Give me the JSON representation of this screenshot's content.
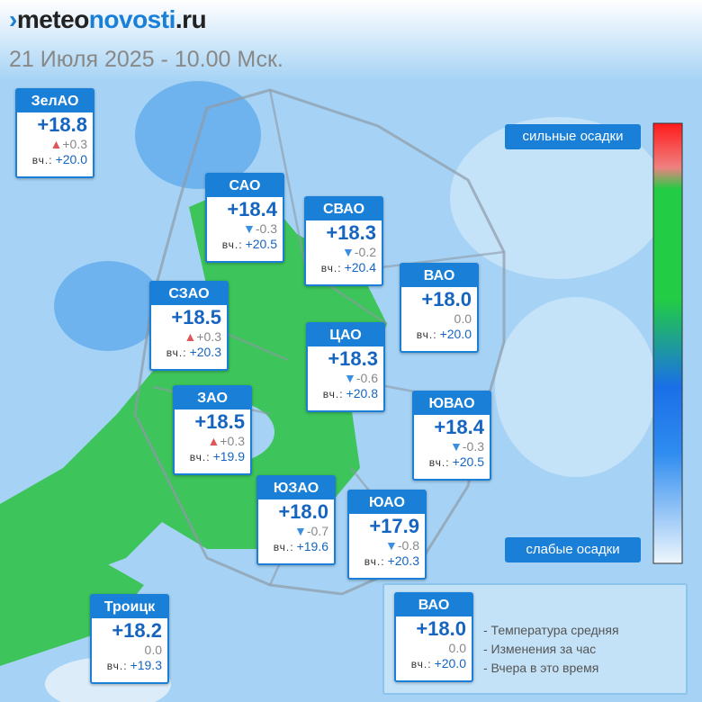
{
  "header": {
    "logo_parts": [
      "meteo",
      "novosti",
      ".ru"
    ],
    "date": "21 Июля 2025 - 10.00 Мск."
  },
  "yesterday_label": "вч.:",
  "districts": [
    {
      "name": "ЗелАО",
      "temp": "+18.8",
      "change": "+0.3",
      "trend": "up",
      "yesterday": "+20.0"
    },
    {
      "name": "САО",
      "temp": "+18.4",
      "change": "-0.3",
      "trend": "down",
      "yesterday": "+20.5"
    },
    {
      "name": "СВАО",
      "temp": "+18.3",
      "change": "-0.2",
      "trend": "down",
      "yesterday": "+20.4"
    },
    {
      "name": "ВАО",
      "temp": "+18.0",
      "change": "0.0",
      "trend": "none",
      "yesterday": "+20.0"
    },
    {
      "name": "СЗАО",
      "temp": "+18.5",
      "change": "+0.3",
      "trend": "up",
      "yesterday": "+20.3"
    },
    {
      "name": "ЦАО",
      "temp": "+18.3",
      "change": "-0.6",
      "trend": "down",
      "yesterday": "+20.8"
    },
    {
      "name": "ЮВАО",
      "temp": "+18.4",
      "change": "-0.3",
      "trend": "down",
      "yesterday": "+20.5"
    },
    {
      "name": "ЗАО",
      "temp": "+18.5",
      "change": "+0.3",
      "trend": "up",
      "yesterday": "+19.9"
    },
    {
      "name": "ЮЗАО",
      "temp": "+18.0",
      "change": "-0.7",
      "trend": "down",
      "yesterday": "+19.6"
    },
    {
      "name": "ЮАО",
      "temp": "+17.9",
      "change": "-0.8",
      "trend": "down",
      "yesterday": "+20.3"
    },
    {
      "name": "Троицк",
      "temp": "+18.2",
      "change": "0.0",
      "trend": "none",
      "yesterday": "+19.3"
    }
  ],
  "scale": {
    "top_label": "сильные осадки",
    "bottom_label": "слабые осадки"
  },
  "legend": {
    "sample": {
      "name": "ВАО",
      "temp": "+18.0",
      "change": "0.0",
      "trend": "none",
      "yesterday": "+20.0"
    },
    "lines": [
      "- Температура средняя",
      "- Изменения за час",
      "- Вчера в это время"
    ]
  }
}
